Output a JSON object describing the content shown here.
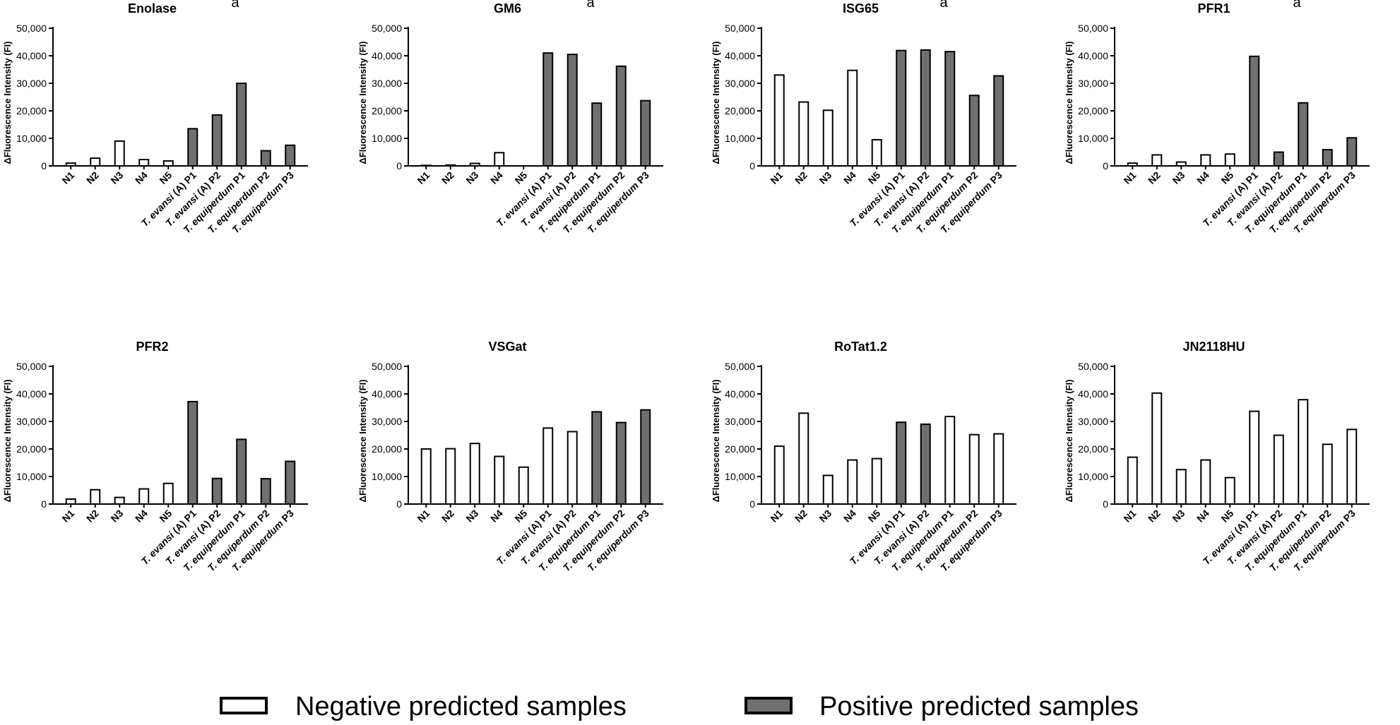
{
  "legend": {
    "negative": {
      "label": "Negative predicted samples",
      "fill": "#ffffff"
    },
    "positive": {
      "label": "Positive predicted samples",
      "fill": "#707070"
    }
  },
  "chart_data": [
    {
      "type": "bar",
      "title": "Enolase",
      "title_suffix": "a",
      "ylabel": "ΔFluorescence Intensity (FI)",
      "ylim": [
        0,
        50000
      ],
      "yticks": [
        "0",
        "10,000",
        "20,000",
        "30,000",
        "40,000",
        "50,000"
      ],
      "categories": [
        {
          "pre": "N1",
          "it": "",
          "post": ""
        },
        {
          "pre": "N2",
          "it": "",
          "post": ""
        },
        {
          "pre": "N3",
          "it": "",
          "post": ""
        },
        {
          "pre": "N4",
          "it": "",
          "post": ""
        },
        {
          "pre": "N5",
          "it": "",
          "post": ""
        },
        {
          "pre": "",
          "it": "T. evansi",
          "post": " (A) P1"
        },
        {
          "pre": "",
          "it": "T. evansi",
          "post": " (A) P2"
        },
        {
          "pre": "",
          "it": "T. equiperdum",
          "post": " P1"
        },
        {
          "pre": "",
          "it": "T. equiperdum",
          "post": " P2"
        },
        {
          "pre": "",
          "it": "T. equiperdum",
          "post": " P3"
        }
      ],
      "values": [
        1000,
        2800,
        9000,
        2300,
        1800,
        13500,
        18500,
        30000,
        5500,
        7500
      ],
      "predicted": [
        "neg",
        "neg",
        "neg",
        "neg",
        "neg",
        "pos",
        "pos",
        "pos",
        "pos",
        "pos"
      ]
    },
    {
      "type": "bar",
      "title": "GM6",
      "title_suffix": "a",
      "ylabel": "ΔFluorescence Intensity (FI)",
      "ylim": [
        0,
        50000
      ],
      "yticks": [
        "0",
        "10,000",
        "20,000",
        "30,000",
        "40,000",
        "50,000"
      ],
      "categories": [
        {
          "pre": "N1",
          "it": "",
          "post": ""
        },
        {
          "pre": "N2",
          "it": "",
          "post": ""
        },
        {
          "pre": "N3",
          "it": "",
          "post": ""
        },
        {
          "pre": "N4",
          "it": "",
          "post": ""
        },
        {
          "pre": "N5",
          "it": "",
          "post": ""
        },
        {
          "pre": "",
          "it": "T. evansi",
          "post": " (A) P1"
        },
        {
          "pre": "",
          "it": "T. evansi",
          "post": " (A) P2"
        },
        {
          "pre": "",
          "it": "T. equiperdum",
          "post": " P1"
        },
        {
          "pre": "",
          "it": "T. equiperdum",
          "post": " P2"
        },
        {
          "pre": "",
          "it": "T. equiperdum",
          "post": " P3"
        }
      ],
      "values": [
        200,
        300,
        900,
        4800,
        0,
        41000,
        40500,
        22800,
        36200,
        23700
      ],
      "predicted": [
        "neg",
        "neg",
        "neg",
        "neg",
        "neg",
        "pos",
        "pos",
        "pos",
        "pos",
        "pos"
      ]
    },
    {
      "type": "bar",
      "title": "ISG65",
      "title_suffix": "a",
      "ylabel": "ΔFluorescence Intensity (FI)",
      "ylim": [
        0,
        50000
      ],
      "yticks": [
        "0",
        "10,000",
        "20,000",
        "30,000",
        "40,000",
        "50,000"
      ],
      "categories": [
        {
          "pre": "N1",
          "it": "",
          "post": ""
        },
        {
          "pre": "N2",
          "it": "",
          "post": ""
        },
        {
          "pre": "N3",
          "it": "",
          "post": ""
        },
        {
          "pre": "N4",
          "it": "",
          "post": ""
        },
        {
          "pre": "N5",
          "it": "",
          "post": ""
        },
        {
          "pre": "",
          "it": "T. evansi",
          "post": " (A) P1"
        },
        {
          "pre": "",
          "it": "T. evansi",
          "post": " (A) P2"
        },
        {
          "pre": "",
          "it": "T. equiperdum",
          "post": " P1"
        },
        {
          "pre": "",
          "it": "T. equiperdum",
          "post": " P2"
        },
        {
          "pre": "",
          "it": "T. equiperdum",
          "post": " P3"
        }
      ],
      "values": [
        33000,
        23200,
        20200,
        34700,
        9500,
        41900,
        42100,
        41500,
        25600,
        32700
      ],
      "predicted": [
        "neg",
        "neg",
        "neg",
        "neg",
        "neg",
        "pos",
        "pos",
        "pos",
        "pos",
        "pos"
      ]
    },
    {
      "type": "bar",
      "title": "PFR1",
      "title_suffix": "a",
      "ylabel": "ΔFluorescence Intensity (FI)",
      "ylim": [
        0,
        50000
      ],
      "yticks": [
        "0",
        "10,000",
        "20,000",
        "30,000",
        "40,000",
        "50,000"
      ],
      "categories": [
        {
          "pre": "N1",
          "it": "",
          "post": ""
        },
        {
          "pre": "N2",
          "it": "",
          "post": ""
        },
        {
          "pre": "N3",
          "it": "",
          "post": ""
        },
        {
          "pre": "N4",
          "it": "",
          "post": ""
        },
        {
          "pre": "N5",
          "it": "",
          "post": ""
        },
        {
          "pre": "",
          "it": "T. evansi",
          "post": " (A) P1"
        },
        {
          "pre": "",
          "it": "T. evansi",
          "post": " (A) P2"
        },
        {
          "pre": "",
          "it": "T. equiperdum",
          "post": " P1"
        },
        {
          "pre": "",
          "it": "T. equiperdum",
          "post": " P2"
        },
        {
          "pre": "",
          "it": "T. equiperdum",
          "post": " P3"
        }
      ],
      "values": [
        1000,
        4000,
        1400,
        4000,
        4300,
        39800,
        5000,
        22900,
        5900,
        10200
      ],
      "predicted": [
        "neg",
        "neg",
        "neg",
        "neg",
        "neg",
        "pos",
        "pos",
        "pos",
        "pos",
        "pos"
      ]
    },
    {
      "type": "bar",
      "title": "PFR2",
      "title_suffix": "",
      "ylabel": "ΔFluorescence Intensity (FI)",
      "ylim": [
        0,
        50000
      ],
      "yticks": [
        "0",
        "10,000",
        "20,000",
        "30,000",
        "40,000",
        "50,000"
      ],
      "categories": [
        {
          "pre": "N1",
          "it": "",
          "post": ""
        },
        {
          "pre": "N2",
          "it": "",
          "post": ""
        },
        {
          "pre": "N3",
          "it": "",
          "post": ""
        },
        {
          "pre": "N4",
          "it": "",
          "post": ""
        },
        {
          "pre": "N5",
          "it": "",
          "post": ""
        },
        {
          "pre": "",
          "it": "T. evansi",
          "post": " (A) P1"
        },
        {
          "pre": "",
          "it": "T. evansi",
          "post": " (A) P2"
        },
        {
          "pre": "",
          "it": "T. equiperdum",
          "post": " P1"
        },
        {
          "pre": "",
          "it": "T. equiperdum",
          "post": " P2"
        },
        {
          "pre": "",
          "it": "T. equiperdum",
          "post": " P3"
        }
      ],
      "values": [
        1800,
        5200,
        2400,
        5500,
        7500,
        37200,
        9300,
        23500,
        9200,
        15500
      ],
      "predicted": [
        "neg",
        "neg",
        "neg",
        "neg",
        "neg",
        "pos",
        "pos",
        "pos",
        "pos",
        "pos"
      ]
    },
    {
      "type": "bar",
      "title": "VSGat",
      "title_suffix": "",
      "ylabel": "ΔFluorescence Intensity (FI)",
      "ylim": [
        0,
        50000
      ],
      "yticks": [
        "0",
        "10,000",
        "20,000",
        "30,000",
        "40,000",
        "50,000"
      ],
      "categories": [
        {
          "pre": "N1",
          "it": "",
          "post": ""
        },
        {
          "pre": "N2",
          "it": "",
          "post": ""
        },
        {
          "pre": "N3",
          "it": "",
          "post": ""
        },
        {
          "pre": "N4",
          "it": "",
          "post": ""
        },
        {
          "pre": "N5",
          "it": "",
          "post": ""
        },
        {
          "pre": "",
          "it": "T. evansi",
          "post": " (A) P1"
        },
        {
          "pre": "",
          "it": "T. evansi",
          "post": " (A) P2"
        },
        {
          "pre": "",
          "it": "T. equiperdum",
          "post": " P1"
        },
        {
          "pre": "",
          "it": "T. equiperdum",
          "post": " P2"
        },
        {
          "pre": "",
          "it": "T. equiperdum",
          "post": " P3"
        }
      ],
      "values": [
        20000,
        20100,
        22000,
        17300,
        13400,
        27600,
        26300,
        33500,
        29600,
        34200
      ],
      "predicted": [
        "neg",
        "neg",
        "neg",
        "neg",
        "neg",
        "neg",
        "neg",
        "pos",
        "pos",
        "pos"
      ]
    },
    {
      "type": "bar",
      "title": "RoTat1.2",
      "title_suffix": "",
      "ylabel": "ΔFluorescence Intensity (FI)",
      "ylim": [
        0,
        50000
      ],
      "yticks": [
        "0",
        "10,000",
        "20,000",
        "30,000",
        "40,000",
        "50,000"
      ],
      "categories": [
        {
          "pre": "N1",
          "it": "",
          "post": ""
        },
        {
          "pre": "N2",
          "it": "",
          "post": ""
        },
        {
          "pre": "N3",
          "it": "",
          "post": ""
        },
        {
          "pre": "N4",
          "it": "",
          "post": ""
        },
        {
          "pre": "N5",
          "it": "",
          "post": ""
        },
        {
          "pre": "",
          "it": "T. evansi",
          "post": " (A) P1"
        },
        {
          "pre": "",
          "it": "T. evansi",
          "post": " (A) P2"
        },
        {
          "pre": "",
          "it": "T. equiperdum",
          "post": " P1"
        },
        {
          "pre": "",
          "it": "T. equiperdum",
          "post": " P2"
        },
        {
          "pre": "",
          "it": "T. equiperdum",
          "post": " P3"
        }
      ],
      "values": [
        21000,
        33000,
        10400,
        16000,
        16500,
        29700,
        29000,
        31800,
        25200,
        25500
      ],
      "predicted": [
        "neg",
        "neg",
        "neg",
        "neg",
        "neg",
        "pos",
        "pos",
        "neg",
        "neg",
        "neg"
      ]
    },
    {
      "type": "bar",
      "title": "JN2118HU",
      "title_suffix": "",
      "ylabel": "ΔFluorescence Intensity (FI)",
      "ylim": [
        0,
        50000
      ],
      "yticks": [
        "0",
        "10,000",
        "20,000",
        "30,000",
        "40,000",
        "50,000"
      ],
      "categories": [
        {
          "pre": "N1",
          "it": "",
          "post": ""
        },
        {
          "pre": "N2",
          "it": "",
          "post": ""
        },
        {
          "pre": "N3",
          "it": "",
          "post": ""
        },
        {
          "pre": "N4",
          "it": "",
          "post": ""
        },
        {
          "pre": "N5",
          "it": "",
          "post": ""
        },
        {
          "pre": "",
          "it": "T. evansi",
          "post": " (A) P1"
        },
        {
          "pre": "",
          "it": "T. evansi",
          "post": " (A) P2"
        },
        {
          "pre": "",
          "it": "T. equiperdum",
          "post": " P1"
        },
        {
          "pre": "",
          "it": "T. equiperdum",
          "post": " P2"
        },
        {
          "pre": "",
          "it": "T. equiperdum",
          "post": " P3"
        }
      ],
      "values": [
        17000,
        40300,
        12500,
        16000,
        9600,
        33700,
        25000,
        37900,
        21700,
        27100
      ],
      "predicted": [
        "neg",
        "neg",
        "neg",
        "neg",
        "neg",
        "neg",
        "neg",
        "neg",
        "neg",
        "neg"
      ]
    }
  ]
}
